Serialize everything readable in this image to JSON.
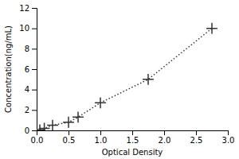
{
  "chart_data": {
    "type": "line",
    "x": [
      0.05,
      0.12,
      0.25,
      0.5,
      0.65,
      1.0,
      1.75,
      2.75
    ],
    "values": [
      0.05,
      0.2,
      0.5,
      0.8,
      1.3,
      2.7,
      5.0,
      10.0
    ],
    "color": "#333333",
    "marker": "plus",
    "line_style": "dotted",
    "xlabel": "Optical Density",
    "ylabel": "Concentration(ng/mL)",
    "xlim": [
      0,
      3
    ],
    "ylim": [
      0,
      12
    ],
    "xticks": [
      {
        "value": 0,
        "label": "0.0"
      },
      0.5,
      {
        "value": 1,
        "label": "1.0"
      },
      1.5,
      {
        "value": 2,
        "label": "2.0"
      },
      2.5,
      {
        "value": 3,
        "label": "3.0"
      }
    ],
    "yticks": [
      0,
      2,
      4,
      6,
      8,
      10,
      12
    ],
    "grid": false
  }
}
